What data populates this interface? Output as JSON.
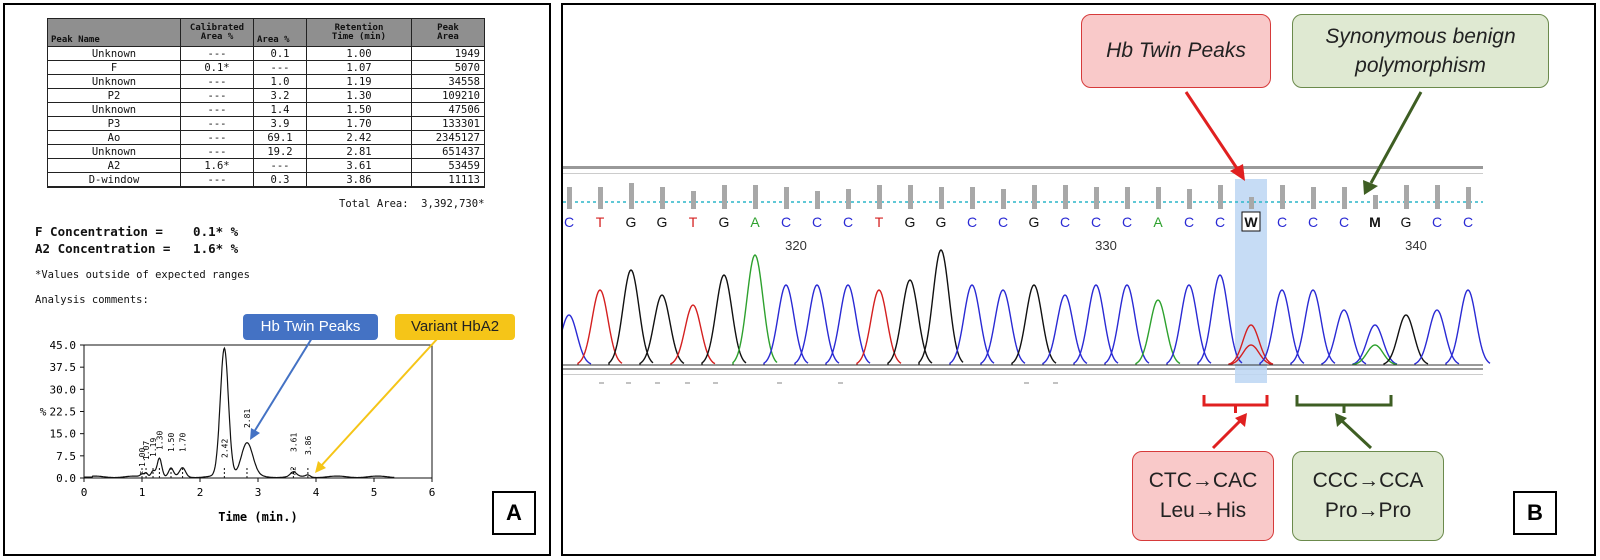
{
  "panelA": {
    "table": {
      "headers": [
        [
          "Peak Name"
        ],
        [
          "Calibrated",
          "Area %"
        ],
        [
          "Area %"
        ],
        [
          "Retention",
          "Time (min)"
        ],
        [
          "Peak",
          "Area"
        ]
      ],
      "rows": [
        [
          "Unknown",
          "---",
          "0.1",
          "1.00",
          "1949"
        ],
        [
          "F",
          "0.1*",
          "---",
          "1.07",
          "5070"
        ],
        [
          "Unknown",
          "---",
          "1.0",
          "1.19",
          "34558"
        ],
        [
          "P2",
          "---",
          "3.2",
          "1.30",
          "109210"
        ],
        [
          "Unknown",
          "---",
          "1.4",
          "1.50",
          "47506"
        ],
        [
          "P3",
          "---",
          "3.9",
          "1.70",
          "133301"
        ],
        [
          "Ao",
          "---",
          "69.1",
          "2.42",
          "2345127"
        ],
        [
          "Unknown",
          "---",
          "19.2",
          "2.81",
          "651437"
        ],
        [
          "A2",
          "1.6*",
          "---",
          "3.61",
          "53459"
        ],
        [
          "D-window",
          "---",
          "0.3",
          "3.86",
          "11113"
        ]
      ]
    },
    "total_area": "Total Area:  3,392,730*",
    "f_concentration": "F Concentration =    0.1* %",
    "a2_concentration": "A2 Concentration =   1.6* %",
    "footnote": "*Values outside of expected ranges",
    "comments": "Analysis comments:",
    "label_twin": "Hb Twin Peaks",
    "label_variant": "Variant HbA2",
    "panel_letter": "A",
    "chart": {
      "y_ticks": [
        "45.0",
        "37.5",
        "30.0",
        "22.5",
        "15.0",
        "7.5",
        "0.0"
      ],
      "x_ticks": [
        "0",
        "1",
        "2",
        "3",
        "4",
        "5",
        "6"
      ],
      "x_label": "Time (min.)",
      "y_label": "%",
      "peak_labels": [
        "1.00",
        "1.07",
        "1.19",
        "1.30",
        "1.50",
        "1.70",
        "2.42",
        "2.81",
        "3.61",
        "3.86"
      ],
      "small_labels": [
        "F",
        "A2"
      ]
    }
  },
  "panelB": {
    "callout_twin": "Hb Twin Peaks",
    "callout_syn_1": "Synonymous benign",
    "callout_syn_2": "polymorphism",
    "bases": [
      "C",
      "T",
      "G",
      "G",
      "T",
      "G",
      "A",
      "C",
      "C",
      "C",
      "T",
      "G",
      "G",
      "C",
      "C",
      "G",
      "C",
      "C",
      "C",
      "A",
      "C",
      "C",
      "W",
      "C",
      "C",
      "C",
      "M",
      "G",
      "C",
      "C"
    ],
    "positions": [
      "320",
      "330",
      "340"
    ],
    "box_red_1": "CTC→CAC",
    "box_red_2": "Leu→His",
    "box_green_1": "CCC→CCA",
    "box_green_2": "Pro→Pro",
    "panel_letter": "B"
  },
  "colors": {
    "A": "#2ea12e",
    "C": "#2a2ad4",
    "G": "#111111",
    "T": "#d42020",
    "W": "#111111",
    "M": "#111111",
    "blue_label": "#4472c4",
    "yellow_label": "#f5c518",
    "red_arrow": "#e02020",
    "green_arrow": "#3e5e23"
  }
}
